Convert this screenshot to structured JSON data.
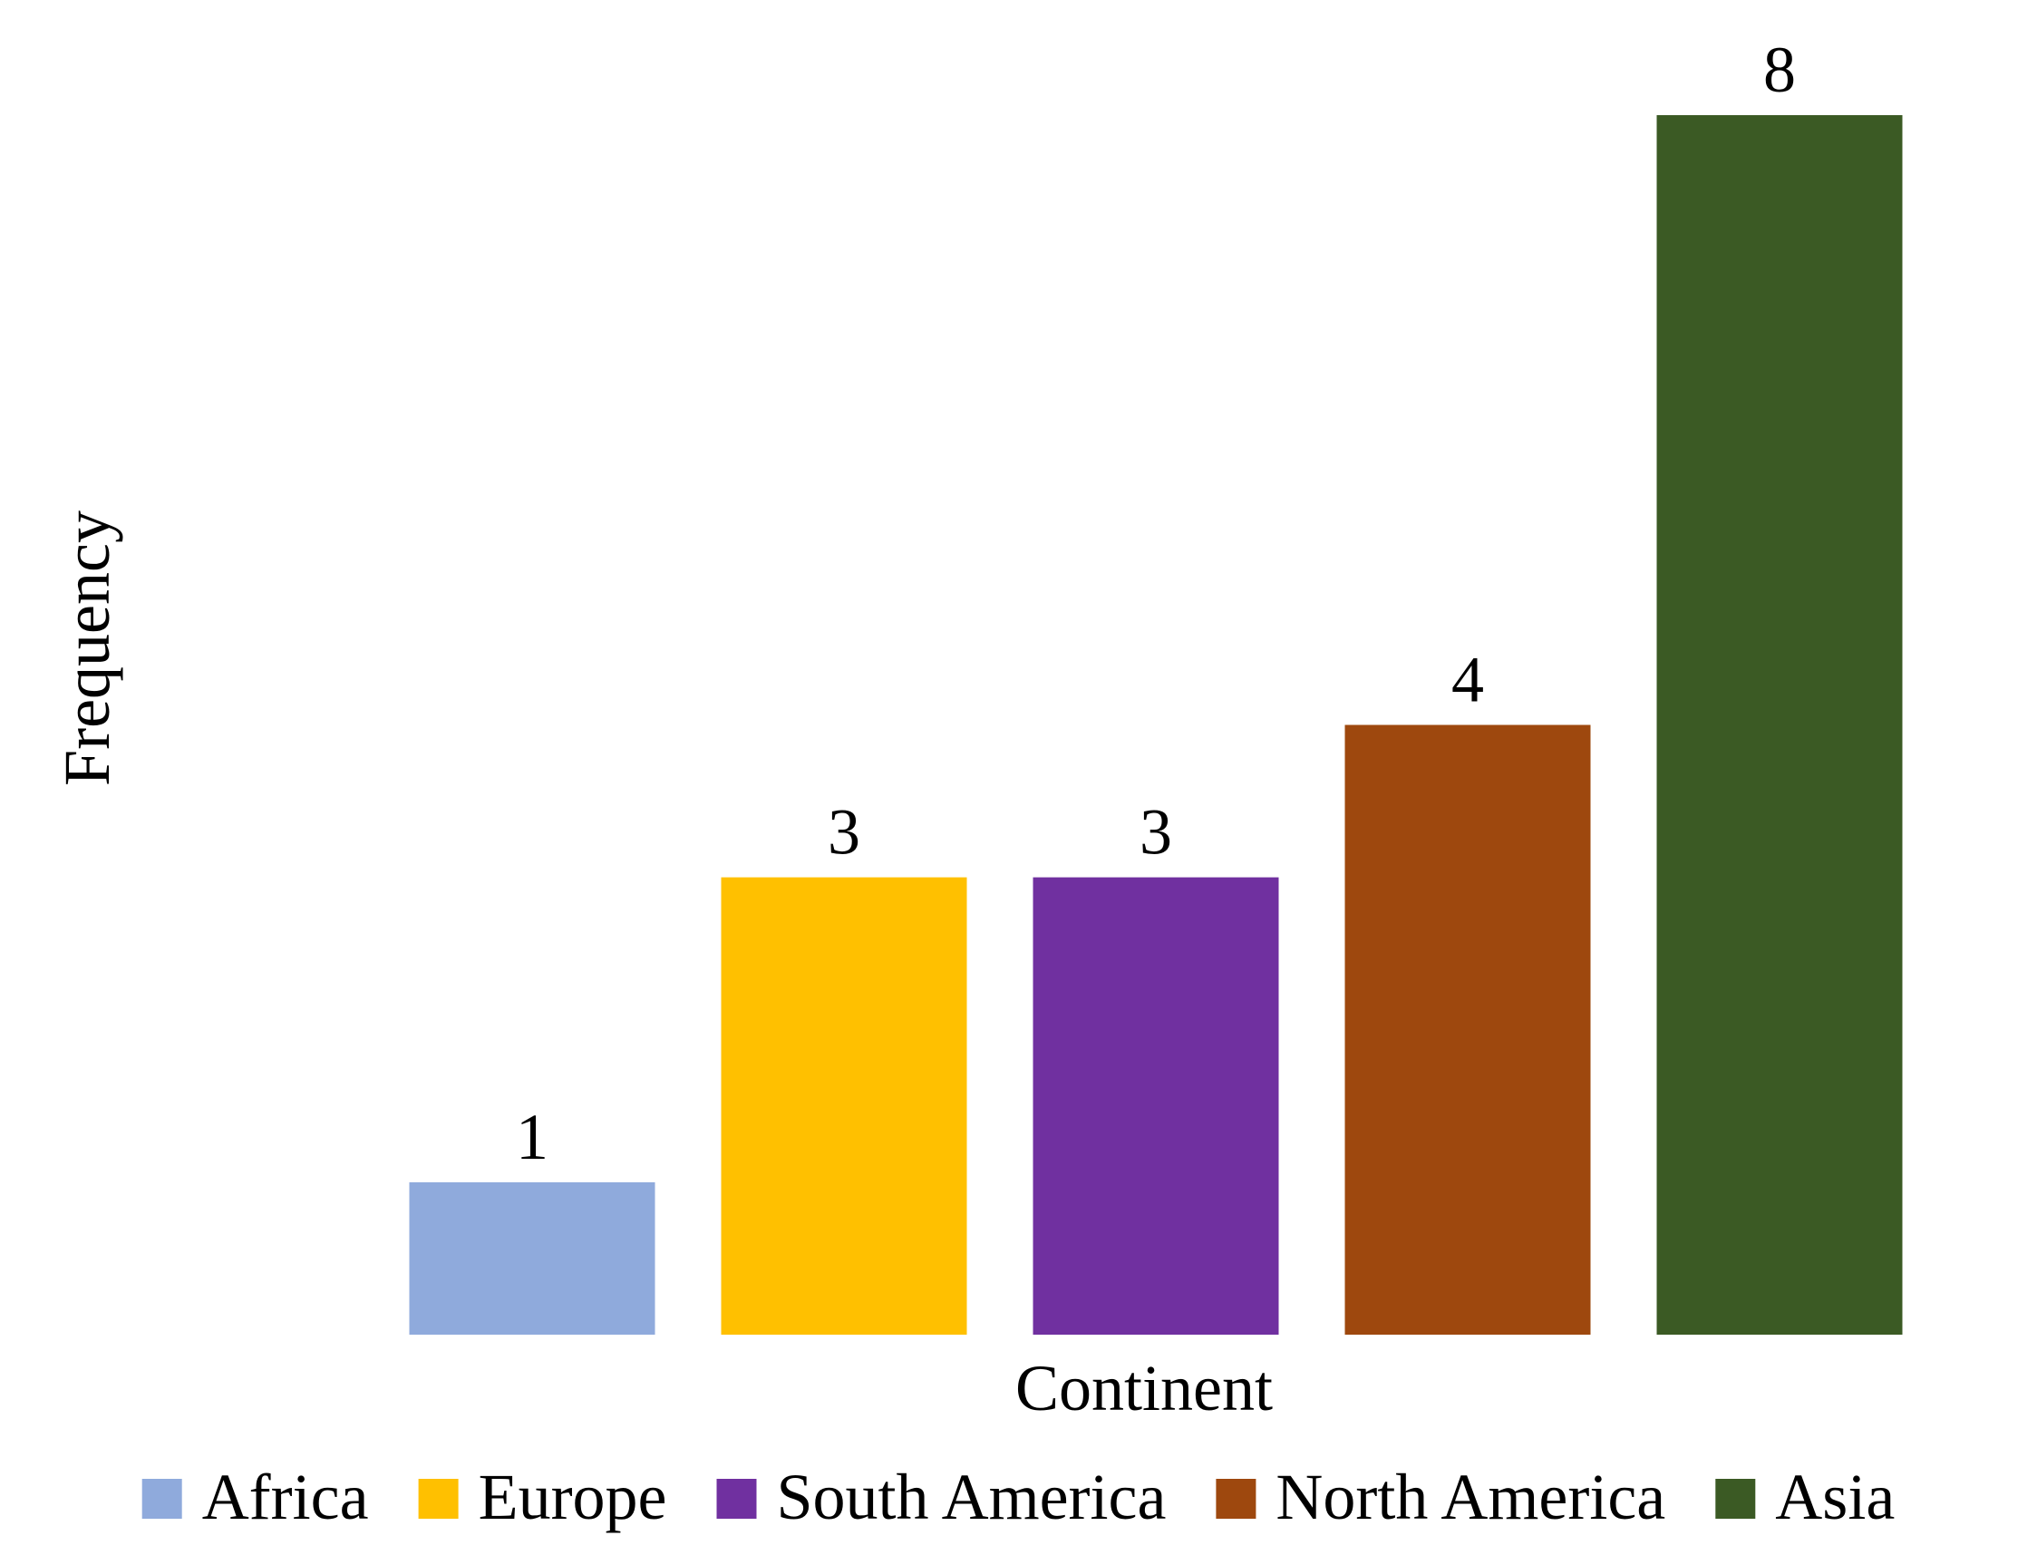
{
  "chart_data": {
    "type": "bar",
    "categories": [
      "Africa",
      "Europe",
      "South America",
      "North America",
      "Asia"
    ],
    "series": [
      {
        "values": [
          1,
          3,
          3,
          4,
          8
        ]
      }
    ],
    "data_labels": [
      "1",
      "3",
      "3",
      "4",
      "8"
    ],
    "colors": [
      "#8faadc",
      "#ffc000",
      "#7030a0",
      "#9e480e",
      "#3b5a24"
    ],
    "title": "",
    "xlabel": "Continent",
    "ylabel": "Frequency",
    "ylim": [
      0,
      8
    ],
    "grid": false,
    "legend": {
      "position": "bottom",
      "entries": [
        "Africa",
        "Europe",
        "South America",
        "North America",
        "Asia"
      ]
    }
  }
}
